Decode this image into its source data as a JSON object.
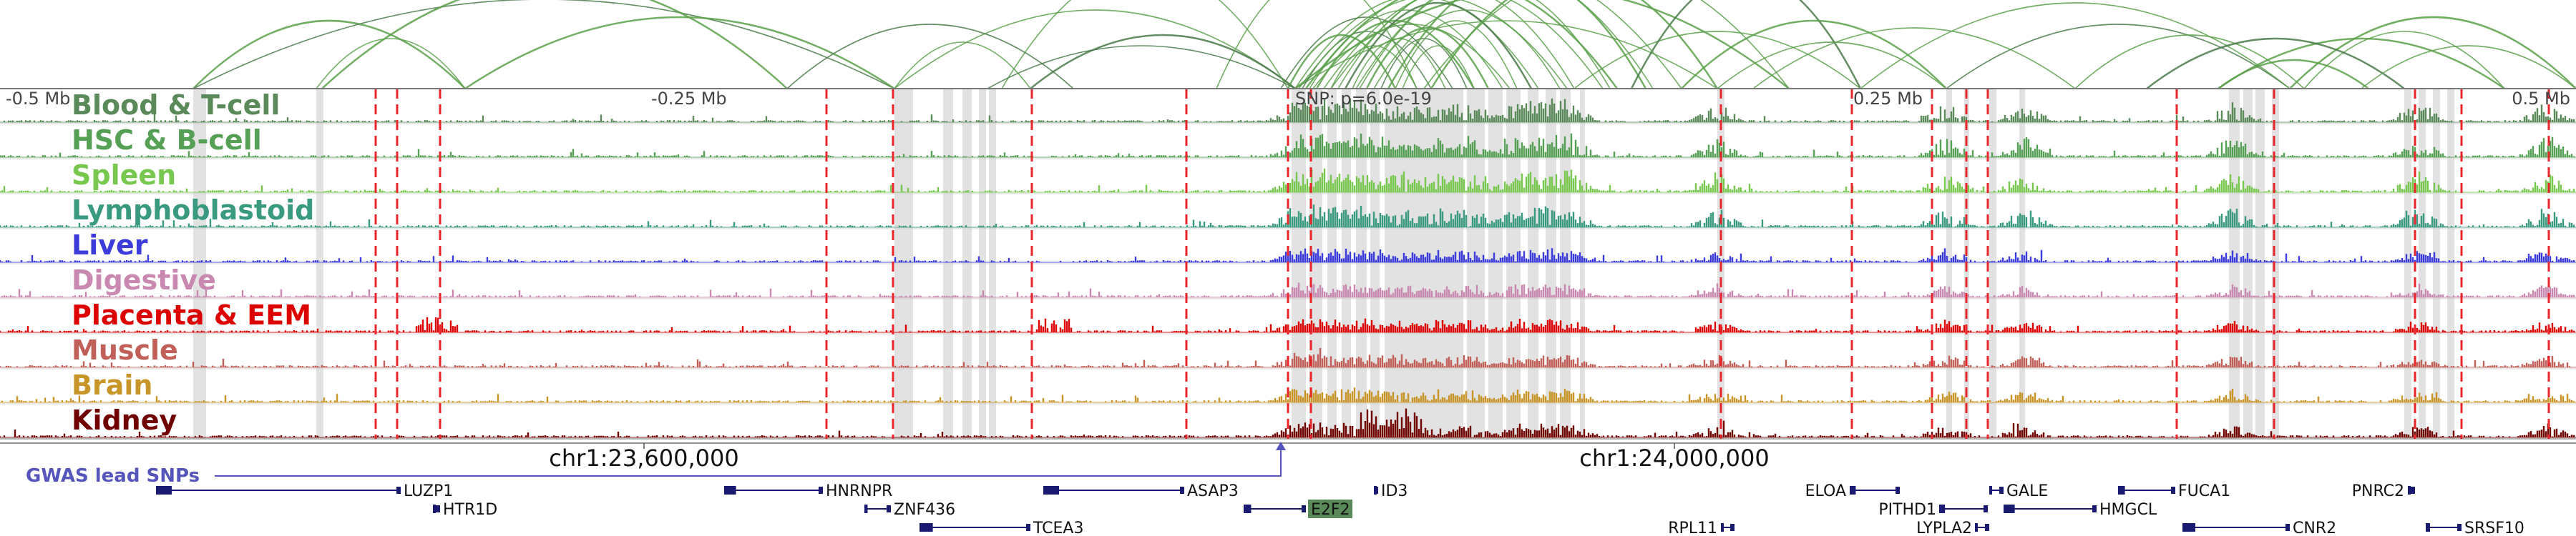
{
  "ruler": {
    "labels": [
      "-0.5 Mb",
      "-0.25 Mb",
      "SNP: p=6.0e-19",
      "0.25 Mb",
      "0.5 Mb"
    ]
  },
  "tracks": [
    {
      "label": "Blood & T-cell",
      "color": "#5a8a5a"
    },
    {
      "label": "HSC & B-cell",
      "color": "#55a055"
    },
    {
      "label": "Spleen",
      "color": "#78c850"
    },
    {
      "label": "Lymphoblastoid",
      "color": "#3a9a80"
    },
    {
      "label": "Liver",
      "color": "#3c3cdc"
    },
    {
      "label": "Digestive",
      "color": "#c888b0"
    },
    {
      "label": "Placenta & EEM",
      "color": "#dc0000"
    },
    {
      "label": "Muscle",
      "color": "#c06058"
    },
    {
      "label": "Brain",
      "color": "#c89628"
    },
    {
      "label": "Kidney",
      "color": "#700000"
    }
  ],
  "coords": {
    "left": "chr1:23,600,000",
    "right": "chr1:24,000,000"
  },
  "gwas": {
    "label": "GWAS lead SNPs",
    "color": "#5555bb"
  },
  "genes": [
    "LUZP1",
    "HTR1D",
    "HNRNPR",
    "ZNF436",
    "TCEA3",
    "ASAP3",
    "E2F2",
    "ID3",
    "RPL11",
    "ELOA",
    "PITHD1",
    "LYPLA2",
    "GALE",
    "HMGCL",
    "FUCA1",
    "CNR2",
    "PNRC2",
    "SRSF10"
  ],
  "colors": {
    "arc": "#5aa04a",
    "arc_dark": "#4a7a4a",
    "red_marker": "#e8252b",
    "gene": "#1a1a70",
    "highlight_gene_bg": "#5a8a5a"
  }
}
